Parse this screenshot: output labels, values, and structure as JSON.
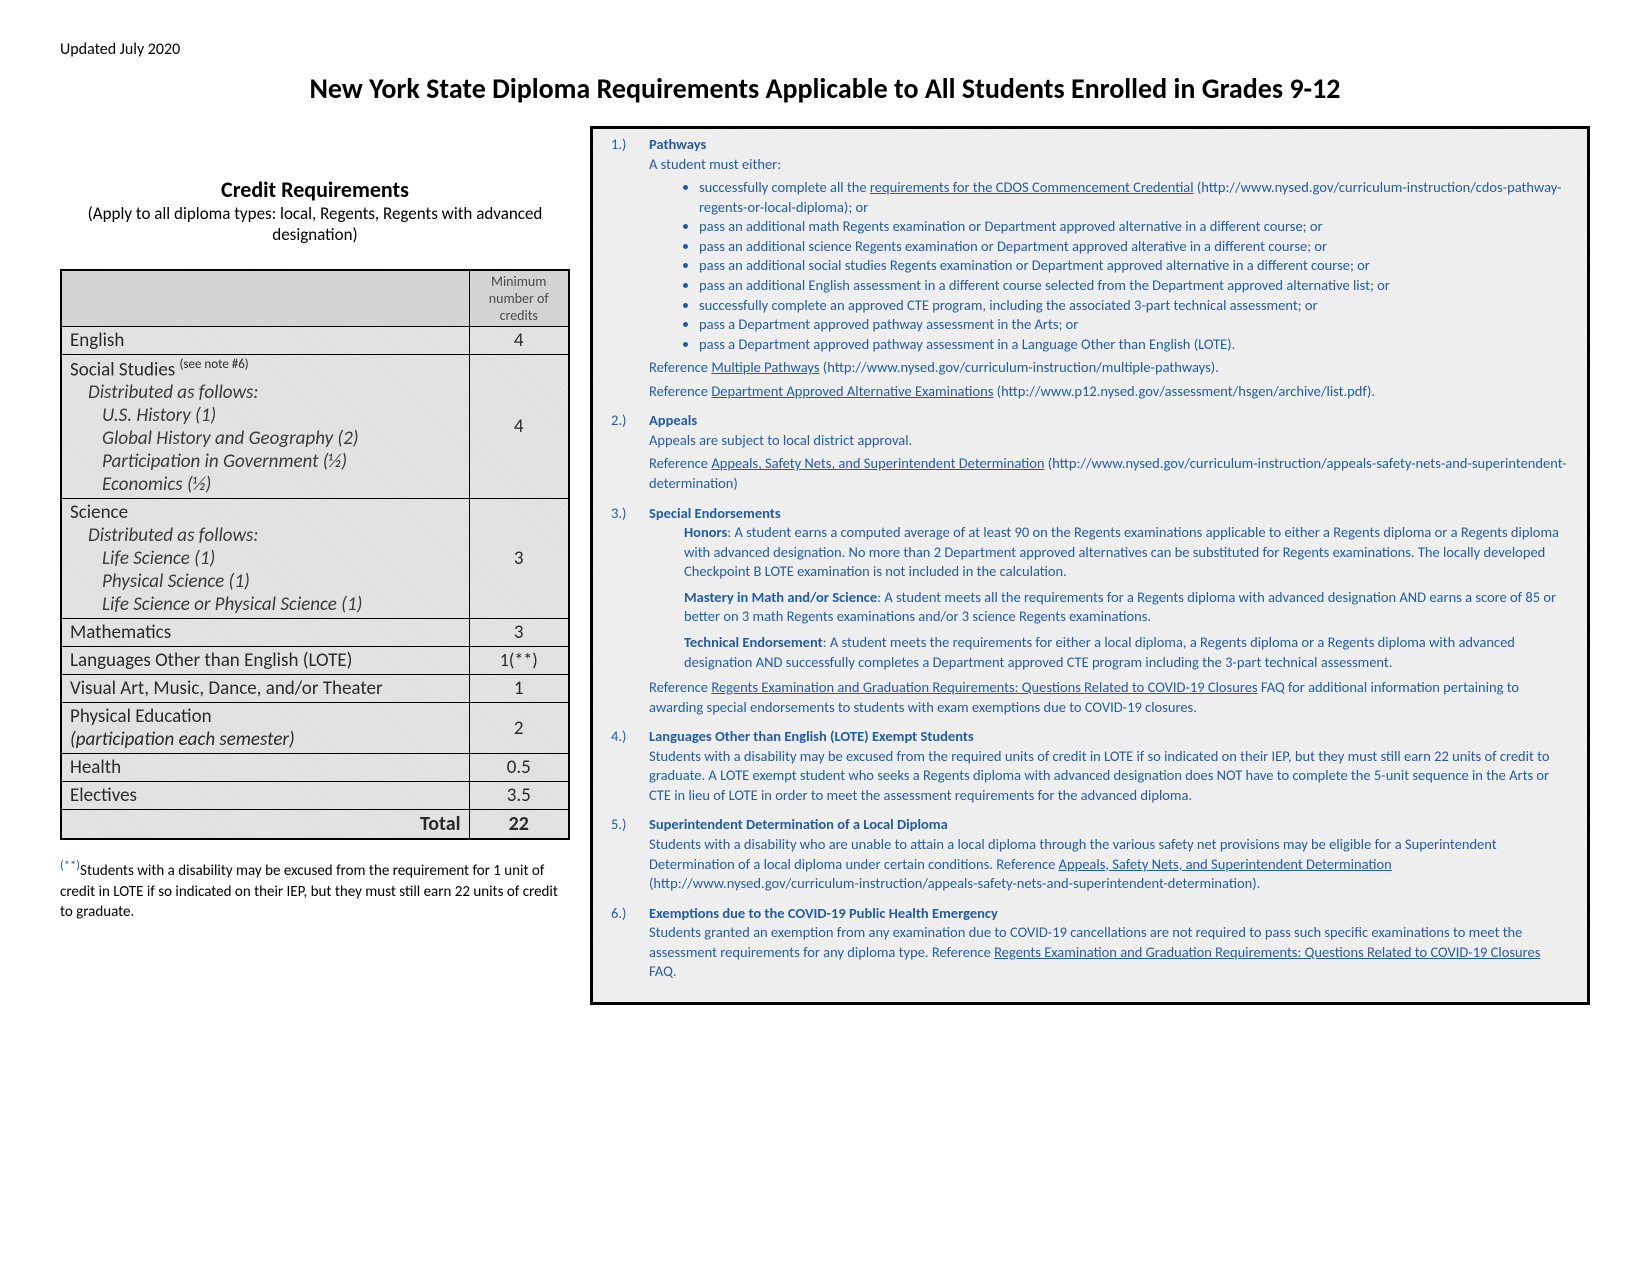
{
  "updated": "Updated July 2020",
  "page_title": "New York State Diploma Requirements Applicable to All Students Enrolled in Grades 9-12",
  "credit_section": {
    "heading": "Credit Requirements",
    "sub": "(Apply to all diploma types: local, Regents, Regents with advanced designation)",
    "header_col1": "",
    "header_col2": "Minimum number of credits",
    "rows": [
      {
        "label": "English",
        "credits": "4",
        "note6": false
      },
      {
        "label": "Social Studies",
        "credits": "4",
        "note6": true,
        "sub": [
          "Distributed as follows:",
          "U.S. History (1)",
          "Global History and Geography (2)",
          "Participation in Government (½)",
          "Economics (½)"
        ]
      },
      {
        "label": "Science",
        "credits": "3",
        "sub": [
          "Distributed as follows:",
          "Life Science (1)",
          "Physical Science (1)",
          "Life Science or Physical Science (1)"
        ]
      },
      {
        "label": "Mathematics",
        "credits": "3"
      },
      {
        "label": "Languages Other than English (LOTE)",
        "credits": "1(**)"
      },
      {
        "label": "Visual Art, Music, Dance, and/or Theater",
        "credits": "1"
      },
      {
        "label": "Physical Education",
        "credits": "2",
        "extra_italic": "(participation each semester)"
      },
      {
        "label": "Health",
        "credits": "0.5"
      },
      {
        "label": "Electives",
        "credits": "3.5"
      }
    ],
    "total_label": "Total",
    "total_value": "22",
    "footnote": "Students with a disability may be excused from the requirement for 1 unit of credit in LOTE if so indicated on their IEP, but they must still earn 22 units of credit to graduate.",
    "footnote_marker": "(**)"
  },
  "notes": {
    "n1": {
      "title": "Pathways",
      "intro": "A student must either:",
      "bullets": [
        {
          "pre": "successfully complete all the ",
          "link": "requirements for the CDOS Commencement Credential",
          "post": " (http://www.nysed.gov/curriculum-instruction/cdos-pathway-regents-or-local-diploma); or"
        },
        {
          "text": "pass an additional math Regents examination or Department approved alternative in a different course; or"
        },
        {
          "text": "pass an additional science Regents examination or Department approved alterative in a different course; or"
        },
        {
          "text": "pass an additional social studies Regents examination or Department approved alternative in a different course; or"
        },
        {
          "text": "pass an additional English assessment in a different course selected from the Department approved alternative list; or"
        },
        {
          "text": "successfully complete an approved CTE program, including the associated 3-part technical assessment; or"
        },
        {
          "text": "pass a Department approved pathway assessment in the Arts; or"
        },
        {
          "text": "pass a Department approved pathway assessment in a Language Other than English (LOTE)."
        }
      ],
      "ref1_pre": "Reference ",
      "ref1_link": "Multiple Pathways",
      "ref1_post": " (http://www.nysed.gov/curriculum-instruction/multiple-pathways).",
      "ref2_pre": "Reference ",
      "ref2_link": "Department Approved Alternative Examinations",
      "ref2_post": " (http://www.p12.nysed.gov/assessment/hsgen/archive/list.pdf)."
    },
    "n2": {
      "title": "Appeals",
      "line1": "Appeals are subject to local district approval.",
      "ref_pre": "Reference ",
      "ref_link": "Appeals, Safety Nets, and Superintendent Determination",
      "ref_post": " (http://www.nysed.gov/curriculum-instruction/appeals-safety-nets-and-superintendent-determination)"
    },
    "n3": {
      "title": "Special Endorsements",
      "honors_label": "Honors",
      "honors_text": ": A student earns a computed average of at least 90 on the Regents examinations applicable to either a Regents diploma or a Regents diploma with advanced designation. No more than 2 Department approved alternatives can be substituted for Regents examinations. The locally developed Checkpoint B LOTE examination is not included in the calculation.",
      "mastery_label": "Mastery in Math and/or Science",
      "mastery_text": ": A student meets all the requirements for a Regents diploma with advanced designation AND earns a score of 85 or better on 3 math Regents examinations and/or 3 science Regents examinations.",
      "tech_label": "Technical Endorsement",
      "tech_text": ": A student meets the requirements for either a local diploma, a Regents diploma or a Regents diploma with advanced designation AND successfully completes a Department approved CTE program including the 3-part technical assessment.",
      "ref_pre": "Reference ",
      "ref_link": "Regents Examination and Graduation Requirements: Questions Related to COVID-19 Closures",
      "ref_post": " FAQ for additional information pertaining to awarding special endorsements to students with exam exemptions due to COVID-19 closures."
    },
    "n4": {
      "title": "Languages Other than English (LOTE) Exempt Students",
      "body": "Students with a disability may be excused from the required units of credit in LOTE if so indicated on their IEP, but they must still earn 22 units of credit to graduate. A LOTE exempt student who seeks a Regents diploma with advanced designation does NOT have to complete the 5-unit sequence in the Arts or CTE in lieu of LOTE in order to meet the assessment requirements for the advanced diploma."
    },
    "n5": {
      "title": "Superintendent Determination of a Local Diploma",
      "pre": "Students with a disability who are unable to attain a local diploma through the various safety net provisions may be eligible for a Superintendent Determination of a local diploma under certain conditions. Reference ",
      "link": "Appeals, Safety Nets, and Superintendent Determination",
      "post": " (http://www.nysed.gov/curriculum-instruction/appeals-safety-nets-and-superintendent-determination)."
    },
    "n6": {
      "title": "Exemptions due to the COVID-19 Public Health Emergency",
      "pre": "Students granted an exemption from any examination due to COVID-19 cancellations are not required to pass such specific examinations to meet the assessment requirements for any diploma type. Reference ",
      "link": "Regents Examination and Graduation Requirements: Questions Related to COVID-19 Closures",
      "post": " FAQ."
    }
  }
}
